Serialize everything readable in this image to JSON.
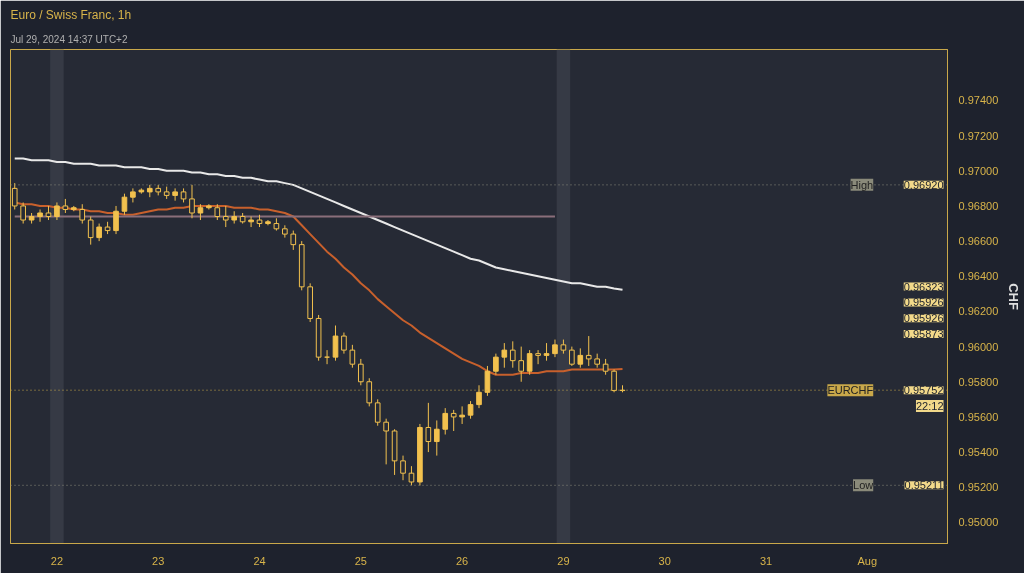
{
  "chart_data": {
    "type": "candlestick",
    "title": "Euro / Swiss Franc, 1h",
    "subtitle": "Jul 29, 2024 14:37 UTC+2",
    "ylabel": "CHF",
    "categories": [
      null,
      null,
      null,
      null,
      null,
      "22",
      null,
      null,
      null,
      null,
      null,
      null,
      null,
      null,
      null,
      null,
      null,
      "23",
      null,
      null,
      null,
      null,
      null,
      null,
      null,
      null,
      null,
      null,
      null,
      "24",
      null,
      null,
      null,
      null,
      null,
      null,
      null,
      null,
      null,
      null,
      null,
      "25",
      null,
      null,
      null,
      null,
      null,
      null,
      null,
      null,
      null,
      null,
      null,
      "26",
      null,
      null,
      null,
      null,
      null,
      null,
      null,
      null,
      null,
      null,
      null,
      "29",
      null,
      null,
      null,
      null,
      null,
      null,
      null,
      null,
      null,
      null,
      null,
      "30",
      null,
      null,
      null,
      null,
      null,
      null,
      null,
      null,
      null,
      null,
      null,
      "31",
      null,
      null,
      null,
      null,
      null,
      null,
      null,
      null,
      null,
      null,
      null,
      "Aug",
      null,
      null,
      null,
      null,
      null,
      null,
      null,
      null,
      null
    ],
    "ylim": [
      0.9488,
      0.9769
    ],
    "yticks": [
      {
        "value": 0.95,
        "label": "0.95000"
      },
      {
        "value": 0.952,
        "label": "0.95200"
      },
      {
        "value": 0.954,
        "label": "0.95400"
      },
      {
        "value": 0.956,
        "label": "0.95600"
      },
      {
        "value": 0.958,
        "label": "0.95800"
      },
      {
        "value": 0.96,
        "label": "0.96000"
      },
      {
        "value": 0.962,
        "label": "0.96200"
      },
      {
        "value": 0.964,
        "label": "0.96400"
      },
      {
        "value": 0.966,
        "label": "0.96600"
      },
      {
        "value": 0.968,
        "label": "0.96800"
      },
      {
        "value": 0.97,
        "label": "0.97000"
      },
      {
        "value": 0.972,
        "label": "0.97200"
      },
      {
        "value": 0.974,
        "label": "0.97400"
      }
    ],
    "grid": false,
    "series": [
      {
        "type": "line",
        "color": "#e8e8e8",
        "values": [
          0.9707,
          0.9707,
          0.9706,
          0.9706,
          0.9706,
          0.9705,
          0.9705,
          0.9704,
          0.9704,
          0.9704,
          0.9703,
          0.9703,
          0.9703,
          0.9702,
          0.9702,
          0.9702,
          0.9701,
          0.9701,
          0.97,
          0.97,
          0.97,
          0.9699,
          0.9699,
          0.9698,
          0.9698,
          0.9697,
          0.9697,
          0.9696,
          0.9696,
          0.9695,
          0.9694,
          0.9694,
          0.9693,
          0.9692,
          0.969,
          0.9688,
          0.9686,
          0.9684,
          0.9682,
          0.968,
          0.9678,
          0.9676,
          0.9674,
          0.9672,
          0.967,
          0.9668,
          0.9666,
          0.9664,
          0.9662,
          0.966,
          0.9658,
          0.9656,
          0.9654,
          0.9652,
          0.965,
          0.9649,
          0.9647,
          0.9645,
          0.9644,
          0.9643,
          0.9642,
          0.9641,
          0.964,
          0.9639,
          0.9638,
          0.9637,
          0.9636,
          0.9636,
          0.9635,
          0.9634,
          0.9634,
          0.9633,
          0.96323,
          null,
          null,
          null,
          null,
          null,
          null,
          null,
          null,
          null,
          null,
          null,
          null,
          null,
          null,
          null,
          null,
          null,
          null,
          null,
          null,
          null,
          null,
          null,
          null,
          null,
          null,
          null,
          null,
          null,
          null,
          null,
          null,
          null,
          null,
          null,
          null,
          null,
          null
        ]
      },
      {
        "type": "line",
        "color": "#c8602c",
        "values": [
          0.9682,
          0.9681,
          0.9681,
          0.968,
          0.968,
          0.9679,
          0.9679,
          0.9678,
          0.9678,
          0.9677,
          0.9677,
          0.9676,
          0.9676,
          0.9675,
          0.9675,
          0.9676,
          0.9677,
          0.9678,
          0.9678,
          0.9679,
          0.9679,
          0.968,
          0.968,
          0.968,
          0.968,
          0.968,
          0.9679,
          0.9679,
          0.9679,
          0.9678,
          0.9678,
          0.9677,
          0.9676,
          0.9674,
          0.9669,
          0.9664,
          0.9659,
          0.9654,
          0.965,
          0.9645,
          0.9641,
          0.9636,
          0.9632,
          0.9627,
          0.9623,
          0.9619,
          0.9615,
          0.9612,
          0.9608,
          0.9605,
          0.9602,
          0.9599,
          0.9596,
          0.9593,
          0.9591,
          0.9589,
          0.9586,
          0.9584,
          0.9584,
          0.9584,
          0.9585,
          0.9585,
          0.9585,
          0.9586,
          0.9586,
          0.9586,
          0.9587,
          0.9587,
          0.9587,
          0.9587,
          0.9587,
          0.9587,
          0.95873,
          null,
          null,
          null,
          null,
          null,
          null,
          null,
          null,
          null,
          null,
          null,
          null,
          null,
          null,
          null,
          null,
          null,
          null,
          null,
          null,
          null,
          null,
          null,
          null,
          null,
          null,
          null,
          null,
          null,
          null,
          null,
          null,
          null,
          null,
          null,
          null,
          null,
          null
        ]
      },
      {
        "type": "line",
        "color": "#8a6e7a",
        "values": [
          0.9674,
          0.9674,
          0.9674,
          0.9674,
          0.9674,
          0.9674,
          0.9674,
          0.9674,
          0.9674,
          0.9674,
          0.9674,
          0.9674,
          0.9674,
          0.9674,
          0.9674,
          0.9674,
          0.9674,
          0.9674,
          0.9674,
          0.9674,
          0.9674,
          0.9674,
          0.9674,
          0.9674,
          0.9674,
          0.9674,
          0.9674,
          0.9674,
          0.9674,
          0.9674,
          0.9674,
          0.9674,
          0.9674,
          0.9674,
          0.9674,
          0.9674,
          0.9674,
          0.9674,
          0.9674,
          0.9674,
          0.9674,
          0.9674,
          0.9674,
          0.9674,
          0.9674,
          0.9674,
          0.9674,
          0.9674,
          0.9674,
          0.9674,
          0.9674,
          0.9674,
          0.9674,
          0.9674,
          0.9674,
          0.9674,
          0.9674,
          0.9674,
          0.9674,
          0.9674,
          0.9674,
          0.9674,
          0.9674,
          0.9674,
          0.9674,
          null,
          null,
          null,
          null,
          null,
          null,
          null,
          null,
          null,
          null,
          null,
          null,
          null,
          null,
          null,
          null,
          null,
          null,
          null,
          null,
          null,
          null,
          null,
          null,
          null,
          null,
          null,
          null,
          null,
          null,
          null,
          null,
          null,
          null,
          null,
          null,
          null,
          null,
          null,
          null,
          null,
          null,
          null,
          null,
          null,
          null
        ]
      },
      {
        "color": "#f2c14e",
        "ohlc": [
          [
            0.969,
            0.9693,
            0.9678,
            0.968
          ],
          [
            0.968,
            0.9682,
            0.967,
            0.9672
          ],
          [
            0.9672,
            0.9676,
            0.967,
            0.9674
          ],
          [
            0.9674,
            0.9678,
            0.9671,
            0.9676
          ],
          [
            0.9676,
            0.968,
            0.9672,
            0.9674
          ],
          [
            0.9674,
            0.9682,
            0.9672,
            0.968
          ],
          [
            0.968,
            0.9684,
            0.9676,
            0.9678
          ],
          [
            0.9678,
            0.968,
            0.9677,
            0.9679
          ],
          [
            0.9678,
            0.9681,
            0.967,
            0.9672
          ],
          [
            0.9672,
            0.9674,
            0.9658,
            0.9662
          ],
          [
            0.9662,
            0.967,
            0.966,
            0.9668
          ],
          [
            0.9668,
            0.9671,
            0.9664,
            0.9666
          ],
          [
            0.9666,
            0.968,
            0.9664,
            0.9677
          ],
          [
            0.9677,
            0.9687,
            0.9675,
            0.9685
          ],
          [
            0.9685,
            0.969,
            0.9682,
            0.9688
          ],
          [
            0.9688,
            0.969,
            0.9687,
            0.9689
          ],
          [
            0.9688,
            0.9692,
            0.9685,
            0.969
          ],
          [
            0.969,
            0.9692,
            0.9686,
            0.9688
          ],
          [
            0.9688,
            0.9691,
            0.9684,
            0.9686
          ],
          [
            0.9686,
            0.969,
            0.9683,
            0.9688
          ],
          [
            0.9688,
            0.969,
            0.9682,
            0.9684
          ],
          [
            0.9684,
            0.9692,
            0.9673,
            0.9676
          ],
          [
            0.9676,
            0.9681,
            0.9672,
            0.9679
          ],
          [
            0.9679,
            0.9681,
            0.9678,
            0.968
          ],
          [
            0.9679,
            0.9681,
            0.9672,
            0.9674
          ],
          [
            0.9674,
            0.968,
            0.9668,
            0.9672
          ],
          [
            0.9672,
            0.9677,
            0.967,
            0.9674
          ],
          [
            0.9674,
            0.9676,
            0.967,
            0.9671
          ],
          [
            0.9671,
            0.9674,
            0.9668,
            0.9672
          ],
          [
            0.9672,
            0.9675,
            0.9668,
            0.967
          ],
          [
            0.967,
            0.9672,
            0.9669,
            0.9671
          ],
          [
            0.967,
            0.9673,
            0.9666,
            0.9667
          ],
          [
            0.9667,
            0.9669,
            0.9662,
            0.9664
          ],
          [
            0.9664,
            0.9666,
            0.9655,
            0.9658
          ],
          [
            0.9658,
            0.966,
            0.9632,
            0.9634
          ],
          [
            0.9634,
            0.9636,
            0.9614,
            0.9616
          ],
          [
            0.9616,
            0.9618,
            0.9592,
            0.9594
          ],
          [
            0.9594,
            0.9598,
            0.959,
            0.9594
          ],
          [
            0.9594,
            0.9612,
            0.9592,
            0.9606
          ],
          [
            0.9606,
            0.9608,
            0.9596,
            0.9598
          ],
          [
            0.9598,
            0.9601,
            0.9588,
            0.959
          ],
          [
            0.959,
            0.9593,
            0.9578,
            0.958
          ],
          [
            0.958,
            0.9582,
            0.9566,
            0.9568
          ],
          [
            0.9568,
            0.957,
            0.9555,
            0.9557
          ],
          [
            0.9557,
            0.9559,
            0.9533,
            0.9552
          ],
          [
            0.9552,
            0.9553,
            0.9527,
            0.9535
          ],
          [
            0.9535,
            0.9538,
            0.9524,
            0.9528
          ],
          [
            0.9528,
            0.9532,
            0.95211,
            0.9523
          ],
          [
            0.9523,
            0.9556,
            0.9521,
            0.9554
          ],
          [
            0.9554,
            0.9568,
            0.954,
            0.9546
          ],
          [
            0.9546,
            0.9558,
            0.9538,
            0.9553
          ],
          [
            0.9553,
            0.9565,
            0.955,
            0.9562
          ],
          [
            0.9562,
            0.9564,
            0.9552,
            0.956
          ],
          [
            0.956,
            0.9566,
            0.9556,
            0.9561
          ],
          [
            0.9561,
            0.9569,
            0.9559,
            0.9567
          ],
          [
            0.9567,
            0.9578,
            0.9565,
            0.9574
          ],
          [
            0.9574,
            0.9589,
            0.9572,
            0.9586
          ],
          [
            0.9586,
            0.9596,
            0.9584,
            0.9594
          ],
          [
            0.9594,
            0.9602,
            0.9588,
            0.9598
          ],
          [
            0.9598,
            0.9603,
            0.9588,
            0.9592
          ],
          [
            0.9592,
            0.96,
            0.958,
            0.9586
          ],
          [
            0.9586,
            0.9598,
            0.9584,
            0.9596
          ],
          [
            0.9596,
            0.9598,
            0.959,
            0.9595
          ],
          [
            0.9595,
            0.9602,
            0.9592,
            0.9596
          ],
          [
            0.9596,
            0.9604,
            0.9594,
            0.9601
          ],
          [
            0.9601,
            0.9604,
            0.9596,
            0.9598
          ],
          [
            0.9598,
            0.96,
            0.9589,
            0.959
          ],
          [
            0.959,
            0.9599,
            0.9588,
            0.9595
          ],
          [
            0.9595,
            0.9606,
            0.9589,
            0.9593
          ],
          [
            0.9593,
            0.9596,
            0.9588,
            0.959
          ],
          [
            0.959,
            0.9593,
            0.9584,
            0.9586
          ],
          [
            0.9586,
            0.9587,
            0.9574,
            0.9575
          ],
          [
            0.9575,
            0.9578,
            0.9574,
            0.95752
          ],
          null,
          null,
          null,
          null,
          null,
          null,
          null,
          null,
          null,
          null,
          null,
          null,
          null,
          null,
          null,
          null,
          null,
          null,
          null,
          null,
          null,
          null,
          null,
          null,
          null,
          null,
          null,
          null,
          null,
          null,
          null,
          null,
          null,
          null,
          null,
          null,
          null,
          null
        ]
      }
    ],
    "ref_lines": [
      {
        "axis": "y",
        "value": 0.9692,
        "label": "High",
        "color": "#8a8a7a",
        "line_style": "dotted"
      },
      {
        "axis": "y",
        "value": 0.95211,
        "label": "Low",
        "color": "#8a8a7a",
        "line_style": "dotted"
      },
      {
        "axis": "y",
        "value": 0.95752,
        "label": "EURCHF",
        "color": "#c9a84a",
        "line_style": "dotted"
      }
    ],
    "bands": [
      {
        "axis": "x",
        "from": "22",
        "to": "22",
        "color": "#363a45"
      },
      {
        "axis": "x",
        "from": "29",
        "to": "29",
        "color": "#363a45"
      }
    ],
    "annotations": [
      {
        "text": "0.96920",
        "y": 0.9692
      },
      "0.96323",
      "0.95926",
      "0.95926",
      "0.95873",
      {
        "text": "0.95752",
        "y": 0.95752
      },
      {
        "text": "22:12",
        "y": 0.95752
      },
      {
        "text": "0.95211",
        "y": 0.95211
      }
    ]
  }
}
